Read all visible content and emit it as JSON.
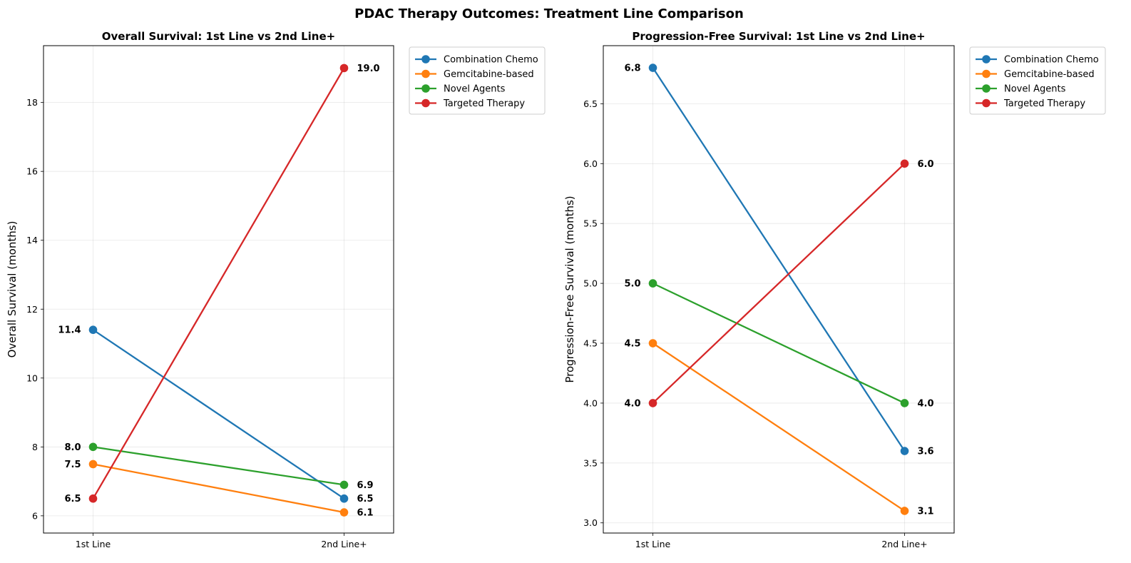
{
  "figure": {
    "title": "PDAC Therapy Outcomes: Treatment Line Comparison"
  },
  "colors": {
    "Combination Chemo": "#1f77b4",
    "Gemcitabine-based": "#ff7f0e",
    "Novel Agents": "#2ca02c",
    "Targeted Therapy": "#d62728"
  },
  "chart_data": [
    {
      "type": "line",
      "title": "Overall Survival: 1st Line vs 2nd Line+",
      "xlabel": "",
      "ylabel": "Overall Survival (months)",
      "categories": [
        "1st Line",
        "2nd Line+"
      ],
      "ylim": [
        5.5,
        19.65
      ],
      "yticks": [
        6,
        8,
        10,
        12,
        14,
        16,
        18
      ],
      "grid": true,
      "legend": "outside upper right",
      "series": [
        {
          "name": "Combination Chemo",
          "values": [
            11.4,
            6.5
          ]
        },
        {
          "name": "Gemcitabine-based",
          "values": [
            7.5,
            6.1
          ]
        },
        {
          "name": "Novel Agents",
          "values": [
            8.0,
            6.9
          ]
        },
        {
          "name": "Targeted Therapy",
          "values": [
            6.5,
            19.0
          ]
        }
      ]
    },
    {
      "type": "line",
      "title": "Progression-Free Survival: 1st Line vs 2nd Line+",
      "xlabel": "",
      "ylabel": "Progression-Free Survival (months)",
      "categories": [
        "1st Line",
        "2nd Line+"
      ],
      "ylim": [
        2.915,
        6.985
      ],
      "yticks": [
        3.0,
        3.5,
        4.0,
        4.5,
        5.0,
        5.5,
        6.0,
        6.5
      ],
      "grid": true,
      "legend": "outside upper right",
      "series": [
        {
          "name": "Combination Chemo",
          "values": [
            6.8,
            3.6
          ]
        },
        {
          "name": "Gemcitabine-based",
          "values": [
            4.5,
            3.1
          ]
        },
        {
          "name": "Novel Agents",
          "values": [
            5.0,
            4.0
          ]
        },
        {
          "name": "Targeted Therapy",
          "values": [
            4.0,
            6.0
          ]
        }
      ]
    }
  ]
}
